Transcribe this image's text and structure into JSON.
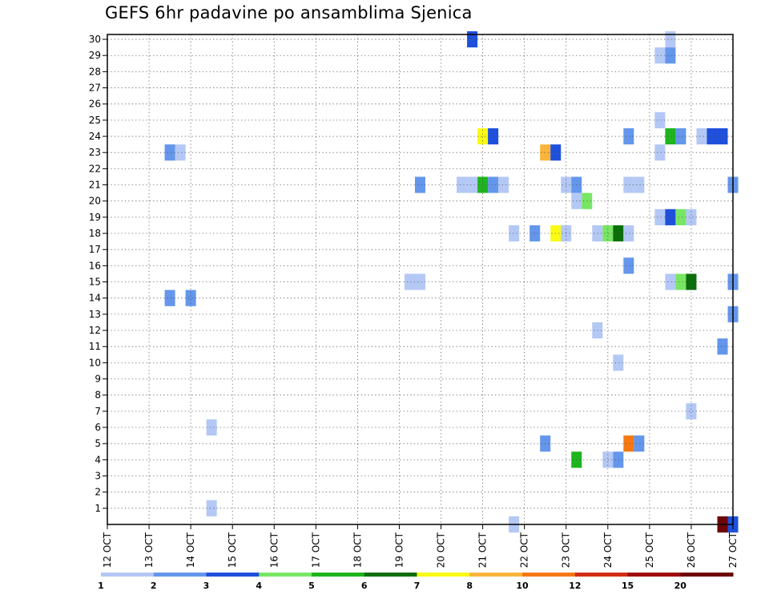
{
  "chart_data": {
    "type": "heatmap",
    "title": "GEFS 6hr padavine po ansamblima Sjenica",
    "xlabel": "",
    "ylabel": "",
    "x_tick_labels": [
      "12 OCT",
      "13 OCT",
      "14 OCT",
      "15 OCT",
      "16 OCT",
      "17 OCT",
      "18 OCT",
      "19 OCT",
      "20 OCT",
      "21 OCT",
      "22 OCT",
      "23 OCT",
      "24 OCT",
      "25 OCT",
      "26 OCT",
      "27 OCT"
    ],
    "x_range_days": [
      0,
      15
    ],
    "y_tick_labels": [
      "1",
      "2",
      "3",
      "4",
      "5",
      "6",
      "7",
      "8",
      "9",
      "10",
      "11",
      "12",
      "13",
      "14",
      "15",
      "16",
      "17",
      "18",
      "19",
      "20",
      "21",
      "22",
      "23",
      "24",
      "25",
      "26",
      "27",
      "28",
      "29",
      "30"
    ],
    "y_range": [
      0,
      30
    ],
    "grid": true,
    "legend_placement": "bottom",
    "colorbar": {
      "levels": [
        "1",
        "2",
        "3",
        "4",
        "5",
        "6",
        "7",
        "8",
        "10",
        "12",
        "15",
        "20"
      ],
      "colors": [
        "#b4c8f5",
        "#6496eb",
        "#1e50dc",
        "#78e664",
        "#1eb41e",
        "#0a6e0a",
        "#fafa14",
        "#fab43c",
        "#f57814",
        "#d22d14",
        "#a00a0a",
        "#6e0505"
      ]
    },
    "cells_note": "each cell: [x_day_offset_from_12_OCT, member, color_class_index]",
    "cells": [
      [
        8.75,
        30,
        2
      ],
      [
        13.5,
        30,
        0
      ],
      [
        13.25,
        29,
        0
      ],
      [
        13.5,
        29,
        1
      ],
      [
        9,
        24,
        6
      ],
      [
        9.25,
        24,
        2
      ],
      [
        12.5,
        24,
        1
      ],
      [
        13.5,
        24,
        4
      ],
      [
        13.75,
        24,
        1
      ],
      [
        14.25,
        24,
        0
      ],
      [
        14.5,
        24,
        2
      ],
      [
        14.75,
        24,
        2
      ],
      [
        1.5,
        23,
        1
      ],
      [
        1.75,
        23,
        0
      ],
      [
        10.5,
        23,
        7
      ],
      [
        10.75,
        23,
        2
      ],
      [
        13.25,
        23,
        0
      ],
      [
        13.25,
        25,
        0
      ],
      [
        7.5,
        21,
        1
      ],
      [
        8.5,
        21,
        0
      ],
      [
        8.75,
        21,
        0
      ],
      [
        9,
        21,
        4
      ],
      [
        9.25,
        21,
        1
      ],
      [
        9.5,
        21,
        0
      ],
      [
        11,
        21,
        0
      ],
      [
        11.25,
        21,
        1
      ],
      [
        12.5,
        21,
        0
      ],
      [
        12.75,
        21,
        0
      ],
      [
        15,
        21,
        1
      ],
      [
        11.25,
        20,
        0
      ],
      [
        11.5,
        20,
        3
      ],
      [
        13.25,
        19,
        0
      ],
      [
        13.5,
        19,
        2
      ],
      [
        13.75,
        19,
        3
      ],
      [
        14,
        19,
        0
      ],
      [
        9.75,
        18,
        0
      ],
      [
        10.25,
        18,
        1
      ],
      [
        10.75,
        18,
        6
      ],
      [
        11,
        18,
        0
      ],
      [
        11.75,
        18,
        0
      ],
      [
        12,
        18,
        3
      ],
      [
        12.25,
        18,
        5
      ],
      [
        12.5,
        18,
        0
      ],
      [
        12.5,
        16,
        1
      ],
      [
        7.25,
        15,
        0
      ],
      [
        7.5,
        15,
        0
      ],
      [
        13.5,
        15,
        0
      ],
      [
        13.75,
        15,
        3
      ],
      [
        14,
        15,
        5
      ],
      [
        15,
        15,
        1
      ],
      [
        1.5,
        14,
        1
      ],
      [
        2,
        14,
        1
      ],
      [
        15,
        13,
        1
      ],
      [
        11.75,
        12,
        0
      ],
      [
        14.75,
        11,
        1
      ],
      [
        12.25,
        10,
        0
      ],
      [
        14,
        7,
        0
      ],
      [
        2.5,
        6,
        0
      ],
      [
        10.5,
        5,
        1
      ],
      [
        12.5,
        5,
        8
      ],
      [
        12.75,
        5,
        1
      ],
      [
        11.25,
        4,
        4
      ],
      [
        12,
        4,
        0
      ],
      [
        12.25,
        4,
        1
      ],
      [
        2.5,
        1,
        0
      ],
      [
        9.75,
        0,
        0
      ],
      [
        14.75,
        0,
        11
      ],
      [
        15,
        0,
        2
      ]
    ]
  }
}
